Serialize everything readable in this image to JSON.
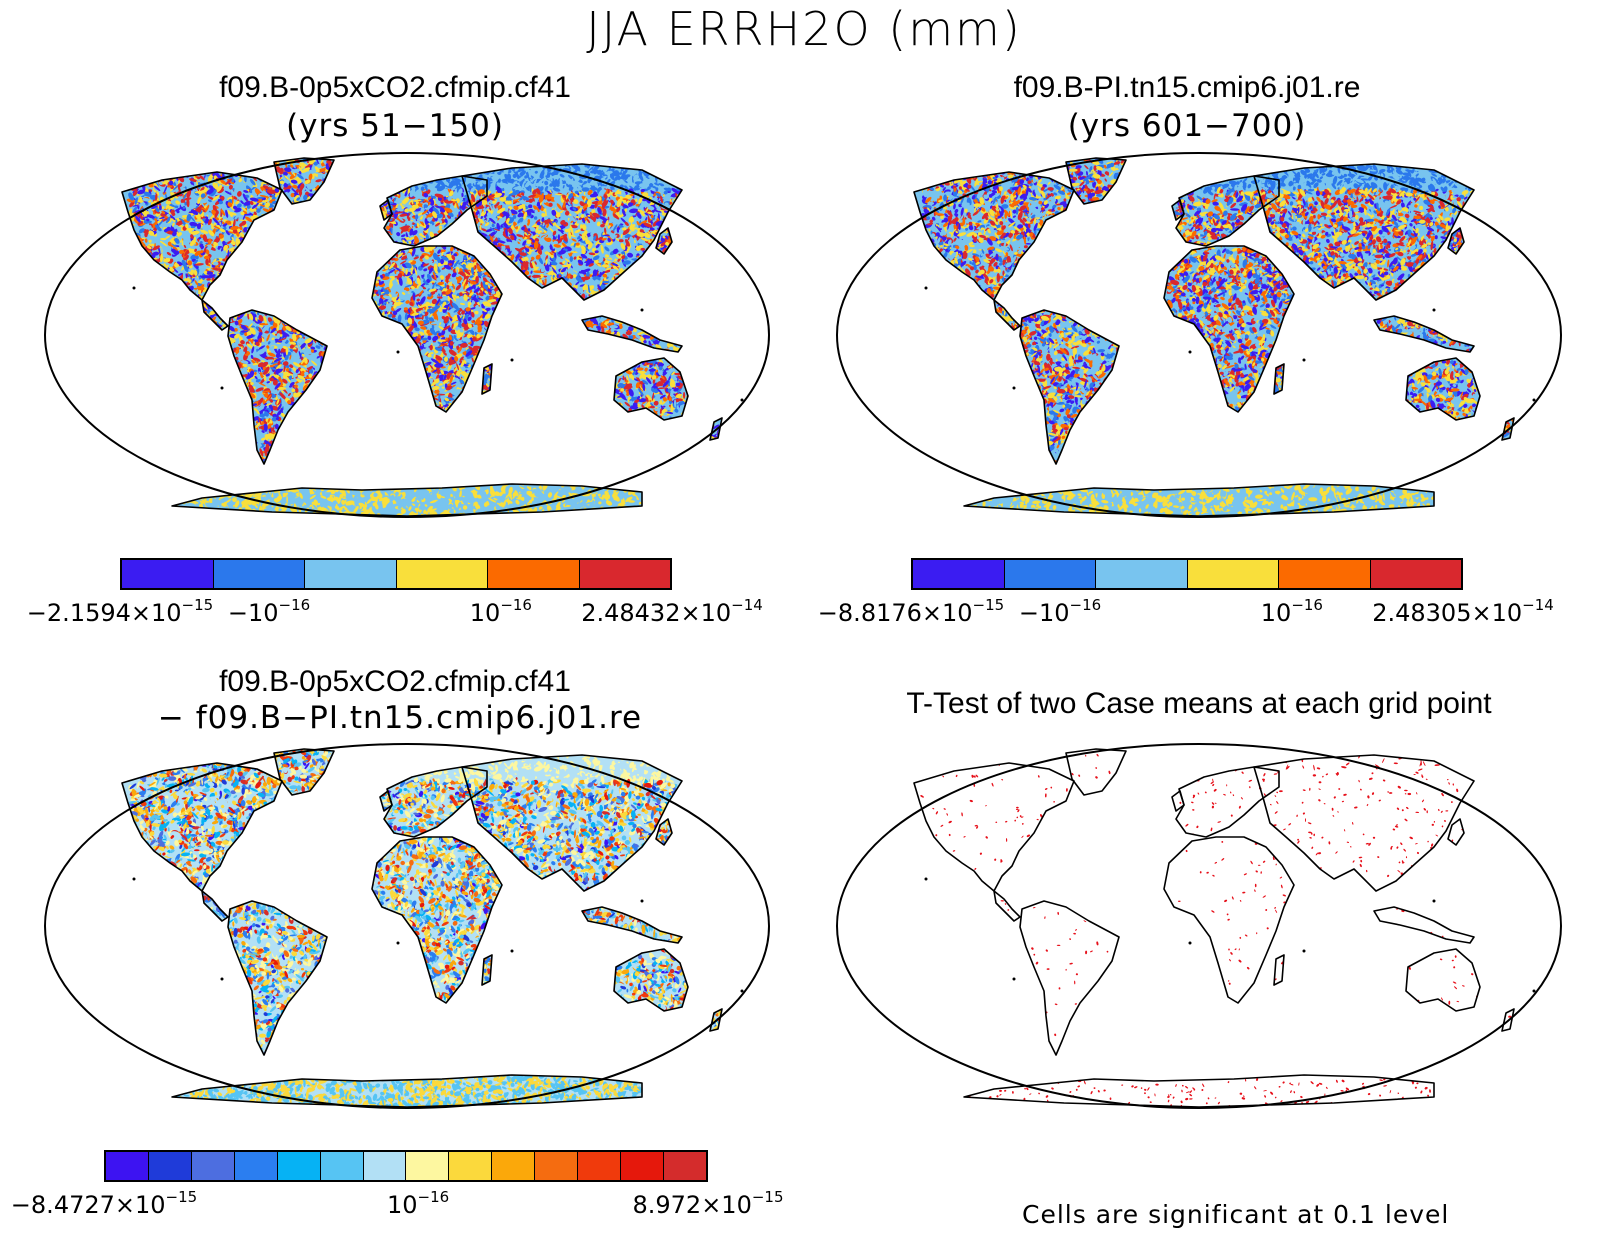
{
  "title": "JJA ERRH2O (mm)",
  "panels": [
    {
      "title": "f09.B-0p5xCO2.cfmip.cf41",
      "subtitle": "(yrs 51−150)",
      "type": "field",
      "colors": [
        "#3b1cf2",
        "#2b78ec",
        "#78c4ef",
        "#f9df3b",
        "#fb6a00",
        "#d9282e"
      ],
      "labels": [
        {
          "m": "−2.1594×10",
          "e": "−15"
        },
        {
          "m": "−10",
          "e": "−16"
        },
        {
          "m": "10",
          "e": "−16"
        },
        {
          "m": "2.48432×10",
          "e": "−14"
        }
      ]
    },
    {
      "title": "f09.B-PI.tn15.cmip6.j01.re",
      "subtitle": "(yrs 601−700)",
      "type": "field",
      "colors": [
        "#3b1cf2",
        "#2b78ec",
        "#78c4ef",
        "#f9df3b",
        "#fb6a00",
        "#d9282e"
      ],
      "labels": [
        {
          "m": "−8.8176×10",
          "e": "−15"
        },
        {
          "m": "−10",
          "e": "−16"
        },
        {
          "m": "10",
          "e": "−16"
        },
        {
          "m": "2.48305×10",
          "e": "−14"
        }
      ]
    },
    {
      "title": "f09.B-0p5xCO2.cfmip.cf41",
      "subtitle": "− f09.B−PI.tn15.cmip6.j01.re",
      "type": "diff",
      "colors": [
        "#3d13f2",
        "#1f3bd9",
        "#4d6ee0",
        "#2b7ef0",
        "#06b2f4",
        "#56c4f3",
        "#b2e0f5",
        "#fdf7a0",
        "#fbd93c",
        "#fba80a",
        "#f56c10",
        "#f03a0c",
        "#e5180c",
        "#d42c2c"
      ],
      "labels": [
        {
          "m": "−8.4727×10",
          "e": "−15"
        },
        {
          "m": "10",
          "e": "−16"
        },
        {
          "m": "8.972×10",
          "e": "−15"
        }
      ]
    },
    {
      "title": "T-Test of two Case means at each grid point",
      "subtitle": "",
      "type": "ttest",
      "note": "Cells are significant at 0.1 level"
    }
  ]
}
